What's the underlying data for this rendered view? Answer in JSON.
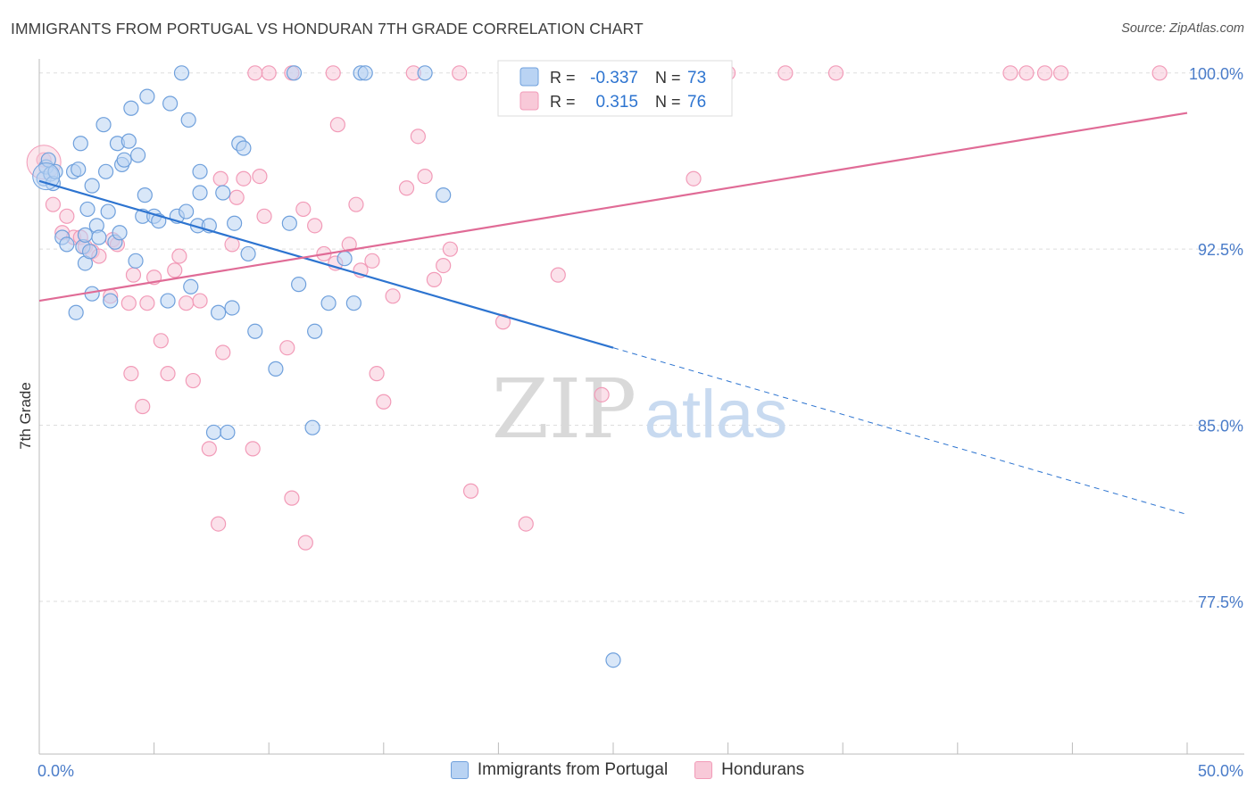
{
  "title": "IMMIGRANTS FROM PORTUGAL VS HONDURAN 7TH GRADE CORRELATION CHART",
  "source": "Source: ZipAtlas.com",
  "watermark": {
    "zip": "ZIP",
    "atlas": "atlas"
  },
  "colors": {
    "blue": "#6fa0dc",
    "blue_fill": "#b9d3f3",
    "blue_line": "#2d74d0",
    "pink": "#f29bb8",
    "pink_fill": "#f8c9d8",
    "pink_line": "#e06b96",
    "tick_label": "#4a7cc9",
    "grid": "#dddddd"
  },
  "legend": {
    "rows": [
      {
        "r_label": "R =",
        "r_value": "-0.337",
        "n_label": "N =",
        "n_value": "73"
      },
      {
        "r_label": "R =",
        "r_value": "0.315",
        "n_label": "N =",
        "n_value": "76"
      }
    ]
  },
  "bottom_legend": [
    "Immigrants from Portugal",
    "Hondurans"
  ],
  "chart_data": {
    "type": "scatter",
    "xlabel": "",
    "ylabel": "7th Grade",
    "xlim": [
      0,
      50
    ],
    "ylim": [
      71.0,
      100.6
    ],
    "x_tick_labels": [
      {
        "value": 0,
        "label": "0.0%"
      },
      {
        "value": 50,
        "label": "50.0%"
      }
    ],
    "x_minor_ticks": [
      0,
      5,
      10,
      15,
      20,
      25,
      30,
      35,
      40,
      45,
      50
    ],
    "y_ticks": [
      {
        "value": 100.0,
        "label": "100.0%"
      },
      {
        "value": 92.5,
        "label": "92.5%"
      },
      {
        "value": 85.0,
        "label": "85.0%"
      },
      {
        "value": 77.5,
        "label": "77.5%"
      }
    ],
    "grid": true,
    "series": [
      {
        "name": "Immigrants from Portugal",
        "color": "#6fa0dc",
        "trend": {
          "x0": 0,
          "y0": 95.4,
          "x1": 25,
          "y1": 88.3,
          "dash_to_x": 50,
          "dash_to_y": 81.2
        },
        "points": [
          [
            0.2,
            95.5
          ],
          [
            0.3,
            96.0
          ],
          [
            0.4,
            96.3
          ],
          [
            0.5,
            95.7
          ],
          [
            0.6,
            95.3
          ],
          [
            0.7,
            95.8
          ],
          [
            1.0,
            93.0
          ],
          [
            1.2,
            92.7
          ],
          [
            1.5,
            95.8
          ],
          [
            1.6,
            89.8
          ],
          [
            1.7,
            95.9
          ],
          [
            1.8,
            97.0
          ],
          [
            1.9,
            92.6
          ],
          [
            2.0,
            93.1
          ],
          [
            2.0,
            91.9
          ],
          [
            2.1,
            94.2
          ],
          [
            2.2,
            92.4
          ],
          [
            2.3,
            90.6
          ],
          [
            2.3,
            95.2
          ],
          [
            2.5,
            93.5
          ],
          [
            2.6,
            93.0
          ],
          [
            2.8,
            97.8
          ],
          [
            2.9,
            95.8
          ],
          [
            3.0,
            94.1
          ],
          [
            3.1,
            90.3
          ],
          [
            3.3,
            92.8
          ],
          [
            3.4,
            97.0
          ],
          [
            3.5,
            93.2
          ],
          [
            3.6,
            96.1
          ],
          [
            3.7,
            96.3
          ],
          [
            3.9,
            97.1
          ],
          [
            4.0,
            98.5
          ],
          [
            4.2,
            92.0
          ],
          [
            4.3,
            96.5
          ],
          [
            4.5,
            93.9
          ],
          [
            4.6,
            94.8
          ],
          [
            4.7,
            99.0
          ],
          [
            5.0,
            93.9
          ],
          [
            5.2,
            93.7
          ],
          [
            5.6,
            90.3
          ],
          [
            5.7,
            98.7
          ],
          [
            6.0,
            93.9
          ],
          [
            6.2,
            100.0
          ],
          [
            6.4,
            94.1
          ],
          [
            6.5,
            98.0
          ],
          [
            6.6,
            90.9
          ],
          [
            6.9,
            93.5
          ],
          [
            7.0,
            95.8
          ],
          [
            7.0,
            94.9
          ],
          [
            7.4,
            93.5
          ],
          [
            7.6,
            84.7
          ],
          [
            7.8,
            89.8
          ],
          [
            8.0,
            94.9
          ],
          [
            8.2,
            84.7
          ],
          [
            8.4,
            90.0
          ],
          [
            8.5,
            93.6
          ],
          [
            8.7,
            97.0
          ],
          [
            8.9,
            96.8
          ],
          [
            9.1,
            92.3
          ],
          [
            9.4,
            89.0
          ],
          [
            10.3,
            87.4
          ],
          [
            10.9,
            93.6
          ],
          [
            11.1,
            100.0
          ],
          [
            11.3,
            91.0
          ],
          [
            11.9,
            84.9
          ],
          [
            12.0,
            89.0
          ],
          [
            12.6,
            90.2
          ],
          [
            13.3,
            92.1
          ],
          [
            13.7,
            90.2
          ],
          [
            14.0,
            100.0
          ],
          [
            14.2,
            100.0
          ],
          [
            16.8,
            100.0
          ],
          [
            17.6,
            94.8
          ],
          [
            25.0,
            75.0
          ]
        ]
      },
      {
        "name": "Hondurans",
        "color": "#f29bb8",
        "trend": {
          "x0": 0,
          "y0": 90.3,
          "x1": 50,
          "y1": 98.3
        },
        "points": [
          [
            0.2,
            96.3
          ],
          [
            0.6,
            94.4
          ],
          [
            1.0,
            93.2
          ],
          [
            1.2,
            93.9
          ],
          [
            1.5,
            93.0
          ],
          [
            1.8,
            93.0
          ],
          [
            2.0,
            92.6
          ],
          [
            2.3,
            92.4
          ],
          [
            2.6,
            92.2
          ],
          [
            3.1,
            90.5
          ],
          [
            3.2,
            92.9
          ],
          [
            3.4,
            92.7
          ],
          [
            3.9,
            90.2
          ],
          [
            4.0,
            87.2
          ],
          [
            4.1,
            91.4
          ],
          [
            4.5,
            85.8
          ],
          [
            4.7,
            90.2
          ],
          [
            5.0,
            91.3
          ],
          [
            5.3,
            88.6
          ],
          [
            5.6,
            87.2
          ],
          [
            5.9,
            91.6
          ],
          [
            6.1,
            92.2
          ],
          [
            6.4,
            90.2
          ],
          [
            6.7,
            86.9
          ],
          [
            7.0,
            90.3
          ],
          [
            7.4,
            84.0
          ],
          [
            7.8,
            80.8
          ],
          [
            7.9,
            95.5
          ],
          [
            8.0,
            88.1
          ],
          [
            8.4,
            92.7
          ],
          [
            8.6,
            94.7
          ],
          [
            8.9,
            95.5
          ],
          [
            9.3,
            84.0
          ],
          [
            9.6,
            95.6
          ],
          [
            9.8,
            93.9
          ],
          [
            10.0,
            100.0
          ],
          [
            10.8,
            88.3
          ],
          [
            11.0,
            81.9
          ],
          [
            11.5,
            94.2
          ],
          [
            11.6,
            80.0
          ],
          [
            12.0,
            93.5
          ],
          [
            12.4,
            92.3
          ],
          [
            12.9,
            91.9
          ],
          [
            13.0,
            97.8
          ],
          [
            13.5,
            92.7
          ],
          [
            13.8,
            94.4
          ],
          [
            14.0,
            91.6
          ],
          [
            14.5,
            92.0
          ],
          [
            14.7,
            87.2
          ],
          [
            15.0,
            86.0
          ],
          [
            15.4,
            90.5
          ],
          [
            16.0,
            95.1
          ],
          [
            16.3,
            100.0
          ],
          [
            16.5,
            97.3
          ],
          [
            16.8,
            95.6
          ],
          [
            17.2,
            91.2
          ],
          [
            17.6,
            91.8
          ],
          [
            17.9,
            92.5
          ],
          [
            18.3,
            100.0
          ],
          [
            18.8,
            82.2
          ],
          [
            20.2,
            89.4
          ],
          [
            21.2,
            80.8
          ],
          [
            22.6,
            91.4
          ],
          [
            24.5,
            86.3
          ],
          [
            28.5,
            95.5
          ],
          [
            30.0,
            100.0
          ],
          [
            32.5,
            100.0
          ],
          [
            34.7,
            100.0
          ],
          [
            42.3,
            100.0
          ],
          [
            43.0,
            100.0
          ],
          [
            43.8,
            100.0
          ],
          [
            44.5,
            100.0
          ],
          [
            48.8,
            100.0
          ],
          [
            9.4,
            100.0
          ],
          [
            11.0,
            100.0
          ],
          [
            12.8,
            100.0
          ]
        ]
      }
    ]
  }
}
